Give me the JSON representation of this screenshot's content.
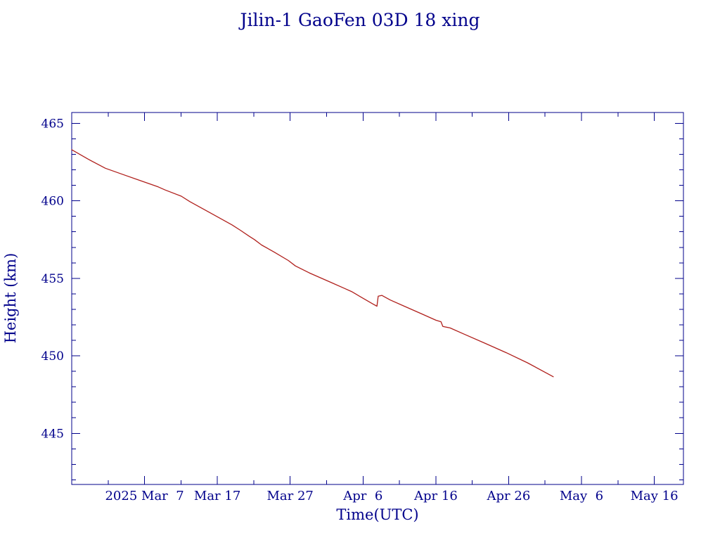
{
  "chart_data": {
    "type": "line",
    "title": "Jilin-1 GaoFen 03D 18 xing",
    "xlabel": "Time(UTC)",
    "ylabel": "Height (km)",
    "xlim": [
      "2025-02-25T00:00",
      "2025-05-20T00:00"
    ],
    "ylim": [
      441.7,
      465.7
    ],
    "x_ticks": [
      {
        "date": "2025-03-07T00:00",
        "label": "2025 Mar  7"
      },
      {
        "date": "2025-03-17T00:00",
        "label": "Mar 17"
      },
      {
        "date": "2025-03-27T00:00",
        "label": "Mar 27"
      },
      {
        "date": "2025-04-06T00:00",
        "label": "Apr  6"
      },
      {
        "date": "2025-04-16T00:00",
        "label": "Apr 16"
      },
      {
        "date": "2025-04-26T00:00",
        "label": "Apr 26"
      },
      {
        "date": "2025-05-06T00:00",
        "label": "May  6"
      },
      {
        "date": "2025-05-16T00:00",
        "label": "May 16"
      }
    ],
    "y_ticks": [
      445,
      450,
      455,
      460,
      465
    ],
    "grid": false,
    "colors": {
      "axis": "#00008b",
      "text": "#00008b",
      "line": "#b0201c",
      "background": "#ffffff"
    },
    "series": [
      {
        "x": [
          "2025-02-25T00:00",
          "2025-02-27T05:00",
          "2025-03-01T15:00",
          "2025-03-04T01:00",
          "2025-03-06T11:00",
          "2025-03-08T21:00",
          "2025-03-09T20:00",
          "2025-03-12T01:00",
          "2025-03-13T05:00",
          "2025-03-16T03:00",
          "2025-03-19T00:00",
          "2025-03-20T04:00",
          "2025-03-21T10:00",
          "2025-03-22T02:00",
          "2025-03-23T02:00",
          "2025-03-24T19:00",
          "2025-03-26T18:00",
          "2025-03-27T17:00",
          "2025-03-29T15:00",
          "2025-04-01T13:00",
          "2025-04-03T11:00",
          "2025-04-04T10:00",
          "2025-04-05T21:00",
          "2025-04-07T08:00",
          "2025-04-07T22:00",
          "2025-04-08T02:00",
          "2025-04-08T14:00",
          "2025-04-09T18:00",
          "2025-04-11T16:00",
          "2025-04-14T02:00",
          "2025-04-16T00:00",
          "2025-04-16T17:00",
          "2025-04-16T23:00",
          "2025-04-17T23:00",
          "2025-04-19T21:00",
          "2025-04-22T19:00",
          "2025-04-25T16:00",
          "2025-04-28T14:00",
          "2025-05-02T03:00"
        ],
        "y": [
          463.3,
          462.7,
          462.1,
          461.7,
          461.3,
          460.9,
          460.7,
          460.3,
          459.95,
          459.2,
          458.45,
          458.1,
          457.7,
          457.5,
          457.15,
          456.7,
          456.15,
          455.8,
          455.35,
          454.75,
          454.35,
          454.15,
          453.75,
          453.35,
          453.2,
          453.85,
          453.9,
          453.6,
          453.2,
          452.7,
          452.3,
          452.2,
          451.9,
          451.8,
          451.4,
          450.8,
          450.2,
          449.55,
          448.65
        ]
      }
    ]
  }
}
